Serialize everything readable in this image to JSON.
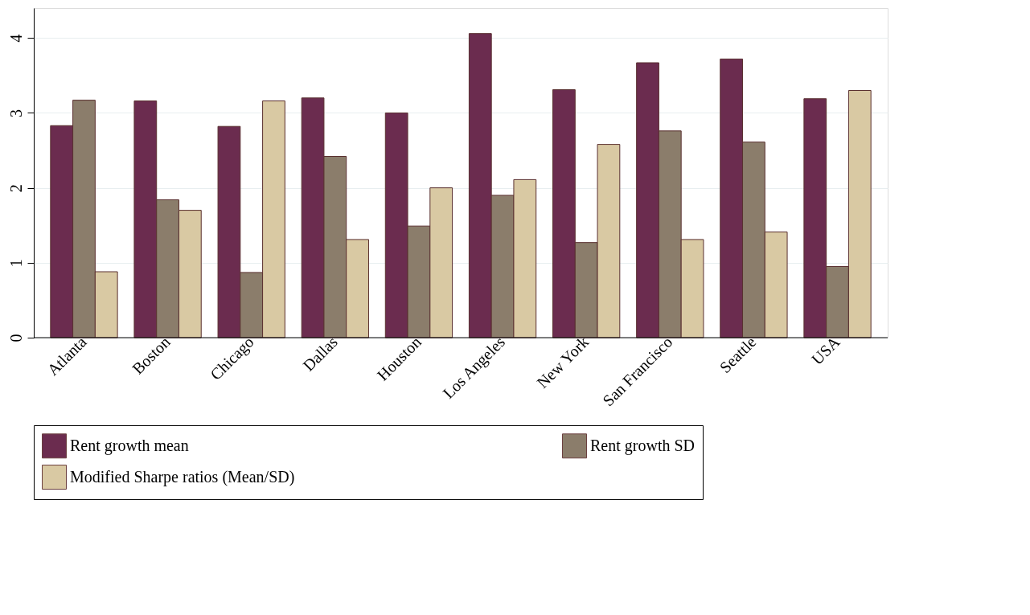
{
  "chart_data": {
    "type": "bar",
    "categories": [
      "Atlanta",
      "Boston",
      "Chicago",
      "Dallas",
      "Houston",
      "Los Angeles",
      "New York",
      "San Francisco",
      "Seattle",
      "USA"
    ],
    "series": [
      {
        "name": "Rent growth mean",
        "color": "#6b2c4f",
        "values": [
          2.83,
          3.16,
          2.82,
          3.2,
          3.0,
          4.06,
          3.31,
          3.67,
          3.72,
          3.19
        ]
      },
      {
        "name": "Rent growth SD",
        "color": "#8b7d6b",
        "values": [
          3.17,
          1.84,
          0.87,
          2.42,
          1.49,
          1.9,
          1.27,
          2.76,
          2.61,
          0.95
        ]
      },
      {
        "name": "Modified Sharpe ratios (Mean/SD)",
        "color": "#d9c9a3",
        "values": [
          0.88,
          1.7,
          3.16,
          1.31,
          2.0,
          2.11,
          2.58,
          1.31,
          1.41,
          3.3
        ]
      }
    ],
    "ylim": [
      0,
      4.4
    ],
    "yticks": [
      0,
      1,
      2,
      3,
      4
    ],
    "grid": "y",
    "legend": "bottom"
  }
}
